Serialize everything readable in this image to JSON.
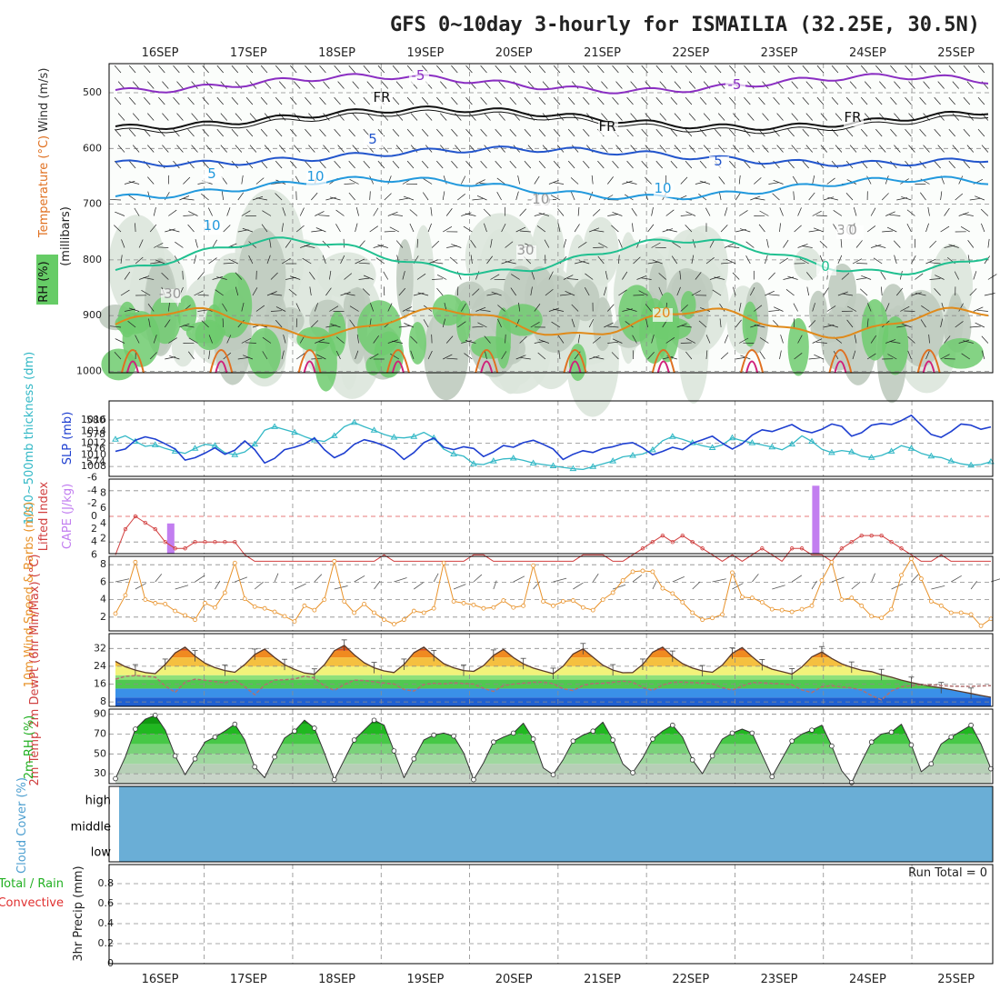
{
  "chart_data": {
    "type": "line",
    "title": "GFS 0~10day 3-hourly for ISMAILIA (32.25E, 30.5N)",
    "x_labels": [
      "16SEP",
      "17SEP",
      "18SEP",
      "19SEP",
      "20SEP",
      "21SEP",
      "22SEP",
      "23SEP",
      "24SEP",
      "25SEP"
    ],
    "panels": {
      "upper": {
        "ylabels": [
          "Wind (m/s)",
          "Temperature (°C)",
          "RH (%)",
          "(millibars)"
        ],
        "yticks": [
          "500",
          "600",
          "700",
          "800",
          "900",
          "1000"
        ],
        "contour_labels": [
          "-5",
          "-5",
          "FR",
          "FR",
          "FR",
          "5",
          "5",
          "5",
          "10",
          "10",
          "10",
          "20",
          "-10",
          "30",
          "30",
          "-30",
          "10",
          "0",
          "0"
        ]
      },
      "slp": {
        "ylabel_left": "1000~500mb thickness (dm)",
        "ylabel_right": "SLP (mb)",
        "left_ticks": [
          "580",
          "578",
          "576",
          "574"
        ],
        "right_ticks": [
          "1016",
          "1014",
          "1012",
          "1010",
          "1008"
        ],
        "slp_mb": [
          1010.6,
          1011.0,
          1012.5,
          1013.1,
          1012.7,
          1011.9,
          1011.0,
          1009.1,
          1009.5,
          1010.3,
          1011.2,
          1010.1,
          1010.8,
          1012.4,
          1010.9,
          1008.6,
          1009.4,
          1010.9,
          1011.3,
          1011.9,
          1012.9,
          1010.9,
          1009.5,
          1010.3,
          1011.8,
          1012.6,
          1012.2,
          1011.6,
          1010.8,
          1009.2,
          1010.4,
          1012.1,
          1012.9,
          1011.3,
          1010.9,
          1011.4,
          1011.1,
          1009.7,
          1010.5,
          1011.6,
          1011.3,
          1012.1,
          1012.5,
          1011.8,
          1011.0,
          1009.2,
          1010.1,
          1010.7,
          1010.4,
          1011.1,
          1011.4,
          1011.9,
          1012.1,
          1011.2,
          1010.0,
          1010.6,
          1011.3,
          1010.9,
          1012.0,
          1012.6,
          1013.2,
          1012.0,
          1011.0,
          1011.9,
          1013.4,
          1014.3,
          1014.0,
          1014.6,
          1015.2,
          1014.2,
          1013.8,
          1014.4,
          1015.3,
          1014.9,
          1013.2,
          1013.8,
          1015.1,
          1015.4,
          1015.2,
          1015.9,
          1016.8,
          1015.1,
          1013.5,
          1013.0,
          1014.0,
          1015.3,
          1015.1,
          1014.4,
          1014.8
        ],
        "thickness_dm": [
          577.3,
          577.8,
          577.0,
          576.3,
          576.5,
          576.0,
          575.6,
          575.3,
          576.0,
          576.6,
          576.4,
          575.4,
          575.1,
          575.5,
          576.6,
          578.6,
          579.1,
          578.7,
          578.3,
          577.7,
          577.2,
          577.0,
          577.8,
          579.1,
          579.7,
          579.1,
          578.6,
          578.0,
          577.6,
          577.5,
          577.7,
          578.3,
          577.5,
          575.9,
          575.2,
          574.9,
          573.8,
          573.7,
          574.2,
          574.5,
          574.6,
          574.3,
          573.9,
          573.7,
          573.5,
          573.3,
          573.1,
          573.0,
          573.4,
          573.8,
          574.2,
          574.8,
          575.0,
          575.2,
          575.8,
          577.1,
          577.7,
          577.3,
          576.8,
          576.4,
          576.1,
          576.5,
          577.5,
          577.1,
          576.8,
          576.5,
          576.2,
          575.8,
          576.6,
          577.8,
          577.0,
          575.9,
          575.4,
          575.7,
          575.5,
          574.9,
          574.7,
          575.0,
          575.6,
          576.4,
          576.0,
          575.3,
          574.9,
          574.7,
          574.2,
          573.8,
          573.6,
          573.7,
          574.1
        ],
        "max_thickness": 579.7
      },
      "cape": {
        "ylabel_left": "Lifted Index",
        "ylabel_right": "CAPE (J/kg)",
        "left_ticks": [
          "-6",
          "-4",
          "-2",
          "0",
          "2",
          "4",
          "6"
        ],
        "right_ticks": [
          "8",
          "6",
          "4",
          "2"
        ],
        "lifted_index": [
          6,
          2,
          0,
          1,
          2,
          4,
          5,
          5,
          4,
          4,
          4,
          4,
          4,
          6,
          7,
          7,
          7,
          7,
          7,
          7,
          7,
          7,
          7,
          7,
          7,
          7,
          7,
          6,
          7,
          7,
          7,
          7,
          7,
          7,
          7,
          7,
          6,
          6,
          7,
          7,
          7,
          7,
          7,
          7,
          7,
          7,
          7,
          6,
          6,
          6,
          7,
          7,
          6,
          5,
          4,
          3,
          4,
          3,
          4,
          5,
          6,
          7,
          6,
          7,
          6,
          5,
          6,
          7,
          5,
          5,
          6,
          6,
          7,
          5,
          4,
          3,
          3,
          3,
          4,
          5,
          6,
          7,
          7,
          6,
          7,
          7,
          7,
          7,
          7
        ],
        "cape_bars": [
          {
            "day_index": 0.6,
            "value": 4
          },
          {
            "day_index": 7.6,
            "value": 9
          }
        ]
      },
      "wind10m": {
        "ylabel": "10m Wind Speed & Barbs (m/s)",
        "yticks": [
          "8",
          "6",
          "4",
          "2"
        ],
        "speed": [
          2.4,
          4.5,
          8.3,
          4.0,
          3.6,
          3.5,
          2.7,
          2.2,
          1.7,
          3.6,
          3.1,
          4.8,
          8.2,
          4.1,
          3.2,
          3.0,
          2.6,
          2.1,
          1.5,
          3.3,
          2.8,
          4.0,
          8.4,
          3.8,
          2.5,
          3.5,
          2.5,
          1.7,
          1.2,
          1.7,
          2.7,
          2.5,
          3.0,
          8.2,
          3.8,
          3.6,
          3.4,
          3.0,
          3.1,
          3.9,
          3.1,
          3.3,
          7.9,
          3.8,
          3.3,
          3.8,
          3.9,
          3.1,
          2.8,
          4.0,
          4.8,
          6.2,
          7.2,
          7.3,
          7.2,
          5.3,
          4.7,
          3.7,
          2.5,
          1.7,
          1.9,
          2.3,
          7.1,
          4.3,
          4.2,
          3.7,
          2.9,
          2.8,
          2.6,
          2.9,
          3.3,
          6.2,
          8.3,
          4.0,
          4.2,
          3.3,
          2.1,
          1.9,
          2.9,
          6.8,
          8.7,
          6.4,
          3.8,
          3.3,
          2.5,
          2.5,
          2.3,
          1.0,
          1.8
        ],
        "max_speed": 8.7
      },
      "temp": {
        "ylabel": "2m Temp 2m DewPt (6hr Min/Max) (°C)",
        "yticks": [
          "32",
          "24",
          "16",
          "8"
        ],
        "temperature_c": [
          26.2,
          23.8,
          22.3,
          21.2,
          20.7,
          24.8,
          30.0,
          32.6,
          28.6,
          25.4,
          23.4,
          22.1,
          21.3,
          24.8,
          29.3,
          31.7,
          27.9,
          24.7,
          22.6,
          21.0,
          20.4,
          24.7,
          31.0,
          33.4,
          29.2,
          25.6,
          23.3,
          21.9,
          21.2,
          24.8,
          30.1,
          32.6,
          28.7,
          25.2,
          23.3,
          22.1,
          21.7,
          24.3,
          28.9,
          31.6,
          27.9,
          25.1,
          23.2,
          21.9,
          20.7,
          24.0,
          29.5,
          31.8,
          28.1,
          24.5,
          22.3,
          21.1,
          21.2,
          24.8,
          30.3,
          32.6,
          28.4,
          25.2,
          23.2,
          21.9,
          21.3,
          24.5,
          29.8,
          32.4,
          28.3,
          24.6,
          22.7,
          21.6,
          20.5,
          23.7,
          28.2,
          30.4,
          27.5,
          25.1,
          23.5,
          22.2,
          21.6,
          20.2,
          19.1,
          17.8,
          16.7,
          15.8,
          15.0,
          14.3,
          13.5,
          12.6,
          11.8,
          10.9,
          10.1
        ],
        "dewpoint_c": [
          18.2,
          19.5,
          19.8,
          19.5,
          19.1,
          15.2,
          12.3,
          16.9,
          18.2,
          17.7,
          17.1,
          16.6,
          17.9,
          14.8,
          11.2,
          15.6,
          17.8,
          17.9,
          18.3,
          19.6,
          18.8,
          15.1,
          13.2,
          15.8,
          17.7,
          17.6,
          17.0,
          16.5,
          16.1,
          13.6,
          12.9,
          15.8,
          16.4,
          16.1,
          16.6,
          16.3,
          16.0,
          14.1,
          12.7,
          15.3,
          16.0,
          16.4,
          16.8,
          16.9,
          16.2,
          13.9,
          13.1,
          15.4,
          16.3,
          16.4,
          16.8,
          17.3,
          16.9,
          14.5,
          13.2,
          15.6,
          16.8,
          16.9,
          16.7,
          16.5,
          16.1,
          14.4,
          13.3,
          15.1,
          16.7,
          16.6,
          16.3,
          16.1,
          15.7,
          13.4,
          12.2,
          14.8,
          15.3,
          14.7,
          14.3,
          13.3,
          10.8,
          8.9,
          12.9,
          14.8,
          15.3,
          15.6,
          15.7,
          15.3,
          15.1,
          15.0,
          15.0,
          15.2,
          15.3
        ]
      },
      "rh": {
        "ylabel": "2m RH (%)",
        "yticks": [
          "90",
          "70",
          "50",
          "30"
        ],
        "rh_percent": [
          25,
          47,
          75,
          85,
          89,
          74,
          48,
          29,
          45,
          62,
          67,
          73,
          80,
          64,
          37,
          26,
          47,
          66,
          73,
          84,
          76,
          51,
          24,
          44,
          64,
          74,
          84,
          79,
          53,
          26,
          45,
          64,
          69,
          71,
          68,
          51,
          24,
          41,
          62,
          67,
          71,
          81,
          65,
          36,
          29,
          44,
          63,
          69,
          73,
          82,
          64,
          40,
          31,
          46,
          65,
          73,
          79,
          67,
          44,
          30,
          48,
          65,
          71,
          75,
          71,
          49,
          27,
          45,
          63,
          70,
          74,
          79,
          58,
          33,
          21,
          42,
          62,
          70,
          72,
          80,
          59,
          32,
          40,
          60,
          67,
          73,
          79,
          60,
          35
        ],
        "min_rh": 21
      },
      "cloud": {
        "ylabel": "Cloud Cover (%)",
        "levels": [
          "high",
          "middle",
          "low"
        ]
      },
      "precip": {
        "ylabel": "3hr Precip (mm)",
        "legend_total": "Total / Rain",
        "legend_convective": "Convective",
        "run_total": "Run Total = 0",
        "yticks": [
          "0.8",
          "0.6",
          "0.4",
          "0.2",
          "0"
        ]
      }
    },
    "colors": {
      "slp": "#1e3fd0",
      "thickness": "#33b8c6",
      "lifted_index": "#d24040",
      "cape": "#c27ef0",
      "wind": "#e8922a",
      "rh": "#22b022",
      "cloud_fill": "#6aaed6",
      "temp_line": "#5a3a2a",
      "dewpoint": "#b07070"
    }
  }
}
